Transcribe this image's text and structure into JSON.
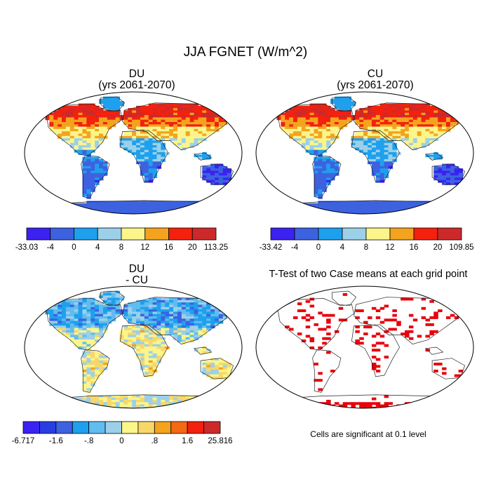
{
  "figure": {
    "title": "JJA FGNET (W/m^2)"
  },
  "panels": [
    {
      "id": "du",
      "title_line1": "DU",
      "title_line2": "(yrs 2061-2070)"
    },
    {
      "id": "cu",
      "title_line1": "CU",
      "title_line2": "(yrs 2061-2070)"
    },
    {
      "id": "diff",
      "title_line1": "DU",
      "title_line2": "- CU"
    },
    {
      "id": "ttest",
      "title_line1": "T-Test of two Case means at each grid point",
      "title_line2": ""
    }
  ],
  "colorbars": [
    {
      "panel": "du",
      "labels": [
        "-33.03",
        "-4",
        "0",
        "4",
        "8",
        "12",
        "16",
        "20",
        "113.25"
      ],
      "colors": [
        "#3b22f0",
        "#3d62e0",
        "#1ea0ee",
        "#9cd0e9",
        "#fbf58a",
        "#f4a31f",
        "#f3210e",
        "#cc2a2a"
      ]
    },
    {
      "panel": "cu",
      "labels": [
        "-33.42",
        "-4",
        "0",
        "4",
        "8",
        "12",
        "16",
        "20",
        "109.85"
      ],
      "colors": [
        "#3b22f0",
        "#3d62e0",
        "#1ea0ee",
        "#9cd0e9",
        "#fbf58a",
        "#f4a31f",
        "#f3210e",
        "#cc2a2a"
      ]
    },
    {
      "panel": "diff",
      "labels": [
        "-6.717",
        "-1.6",
        "-.8",
        "0",
        ".8",
        "1.6",
        "25.816"
      ],
      "label_positions": [
        0,
        2,
        4,
        6,
        8,
        10,
        12
      ],
      "colors": [
        "#3b22f0",
        "#2a3de4",
        "#3d62e0",
        "#1ea0ee",
        "#61bcef",
        "#9cd0e9",
        "#fbf58a",
        "#f6d76a",
        "#f4a31f",
        "#f26a14",
        "#f3210e",
        "#cc2a2a"
      ]
    }
  ],
  "significance_note": "Cells are significant at 0.1 level",
  "significance_color": "#e8000b"
}
